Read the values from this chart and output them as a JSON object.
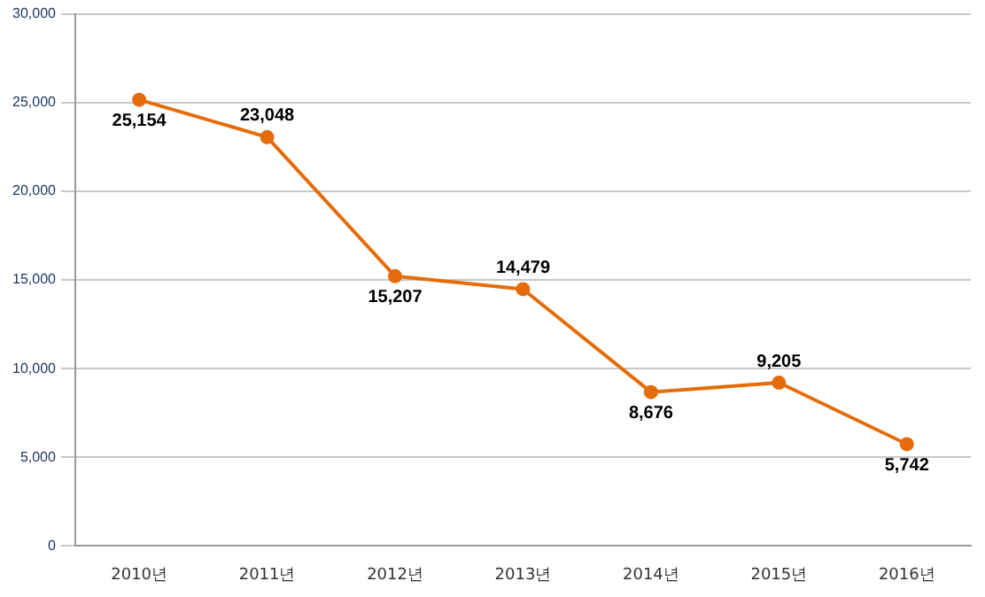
{
  "chart_data": {
    "type": "line",
    "categories": [
      "2010년",
      "2011년",
      "2012년",
      "2013년",
      "2014년",
      "2015년",
      "2016년"
    ],
    "series": [
      {
        "color": "#e46c0a",
        "values": [
          25154,
          23048,
          15207,
          14479,
          8676,
          9205,
          5742
        ],
        "value_labels": [
          "25,154",
          "23,048",
          "15,207",
          "14,479",
          "8,676",
          "9,205",
          "5,742"
        ]
      }
    ],
    "ylim": [
      0,
      30000
    ],
    "yticks": [
      {
        "value": 0,
        "label": "0"
      },
      {
        "value": 5000,
        "label": "5,000"
      },
      {
        "value": 10000,
        "label": "10,000"
      },
      {
        "value": 15000,
        "label": "15,000"
      },
      {
        "value": 20000,
        "label": "20,000"
      },
      {
        "value": 25000,
        "label": "25,000"
      },
      {
        "value": 30000,
        "label": "30,000"
      }
    ],
    "grid": "y",
    "legend": false,
    "marker": "circle",
    "line_style": "solid"
  }
}
